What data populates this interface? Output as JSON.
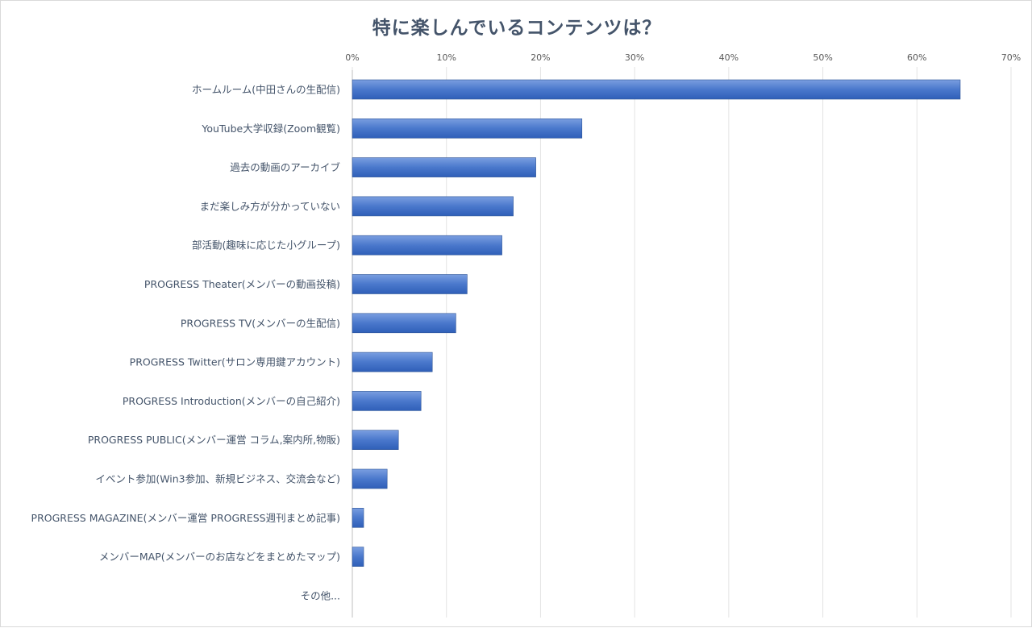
{
  "chart_data": {
    "type": "bar",
    "orientation": "horizontal",
    "title": "特に楽しんでいるコンテンツは？",
    "xlim": [
      0,
      70
    ],
    "x_ticks": [
      "0%",
      "10%",
      "20%",
      "30%",
      "40%",
      "50%",
      "60%",
      "70%"
    ],
    "x_axis_position": "top",
    "grid": true,
    "bar_color": "#4472c4",
    "categories": [
      "ホームルーム(中田さんの生配信)",
      "YouTube大学収録(Zoom観覧)",
      "過去の動画のアーカイブ",
      "まだ楽しみ方が分かっていない",
      "部活動(趣味に応じた小グループ)",
      "PROGRESS Theater(メンバーの動画投稿)",
      "PROGRESS TV(メンバーの生配信)",
      "PROGRESS Twitter(サロン専用鍵アカウント)",
      "PROGRESS Introduction(メンバーの自己紹介)",
      "PROGRESS PUBLIC(メンバー運営 コラム,案内所,物販)",
      "イベント参加(Win3参加、新規ビジネス、交流会など)",
      "PROGRESS MAGAZINE(メンバー運営 PROGRESS週刊まとめ記事)",
      "メンバーMAP(メンバーのお店などをまとめたマップ)",
      "その他..."
    ],
    "values": [
      64.6,
      24.4,
      19.5,
      17.1,
      15.9,
      12.2,
      11.0,
      8.5,
      7.3,
      4.9,
      3.7,
      1.2,
      1.2,
      0.0
    ]
  }
}
